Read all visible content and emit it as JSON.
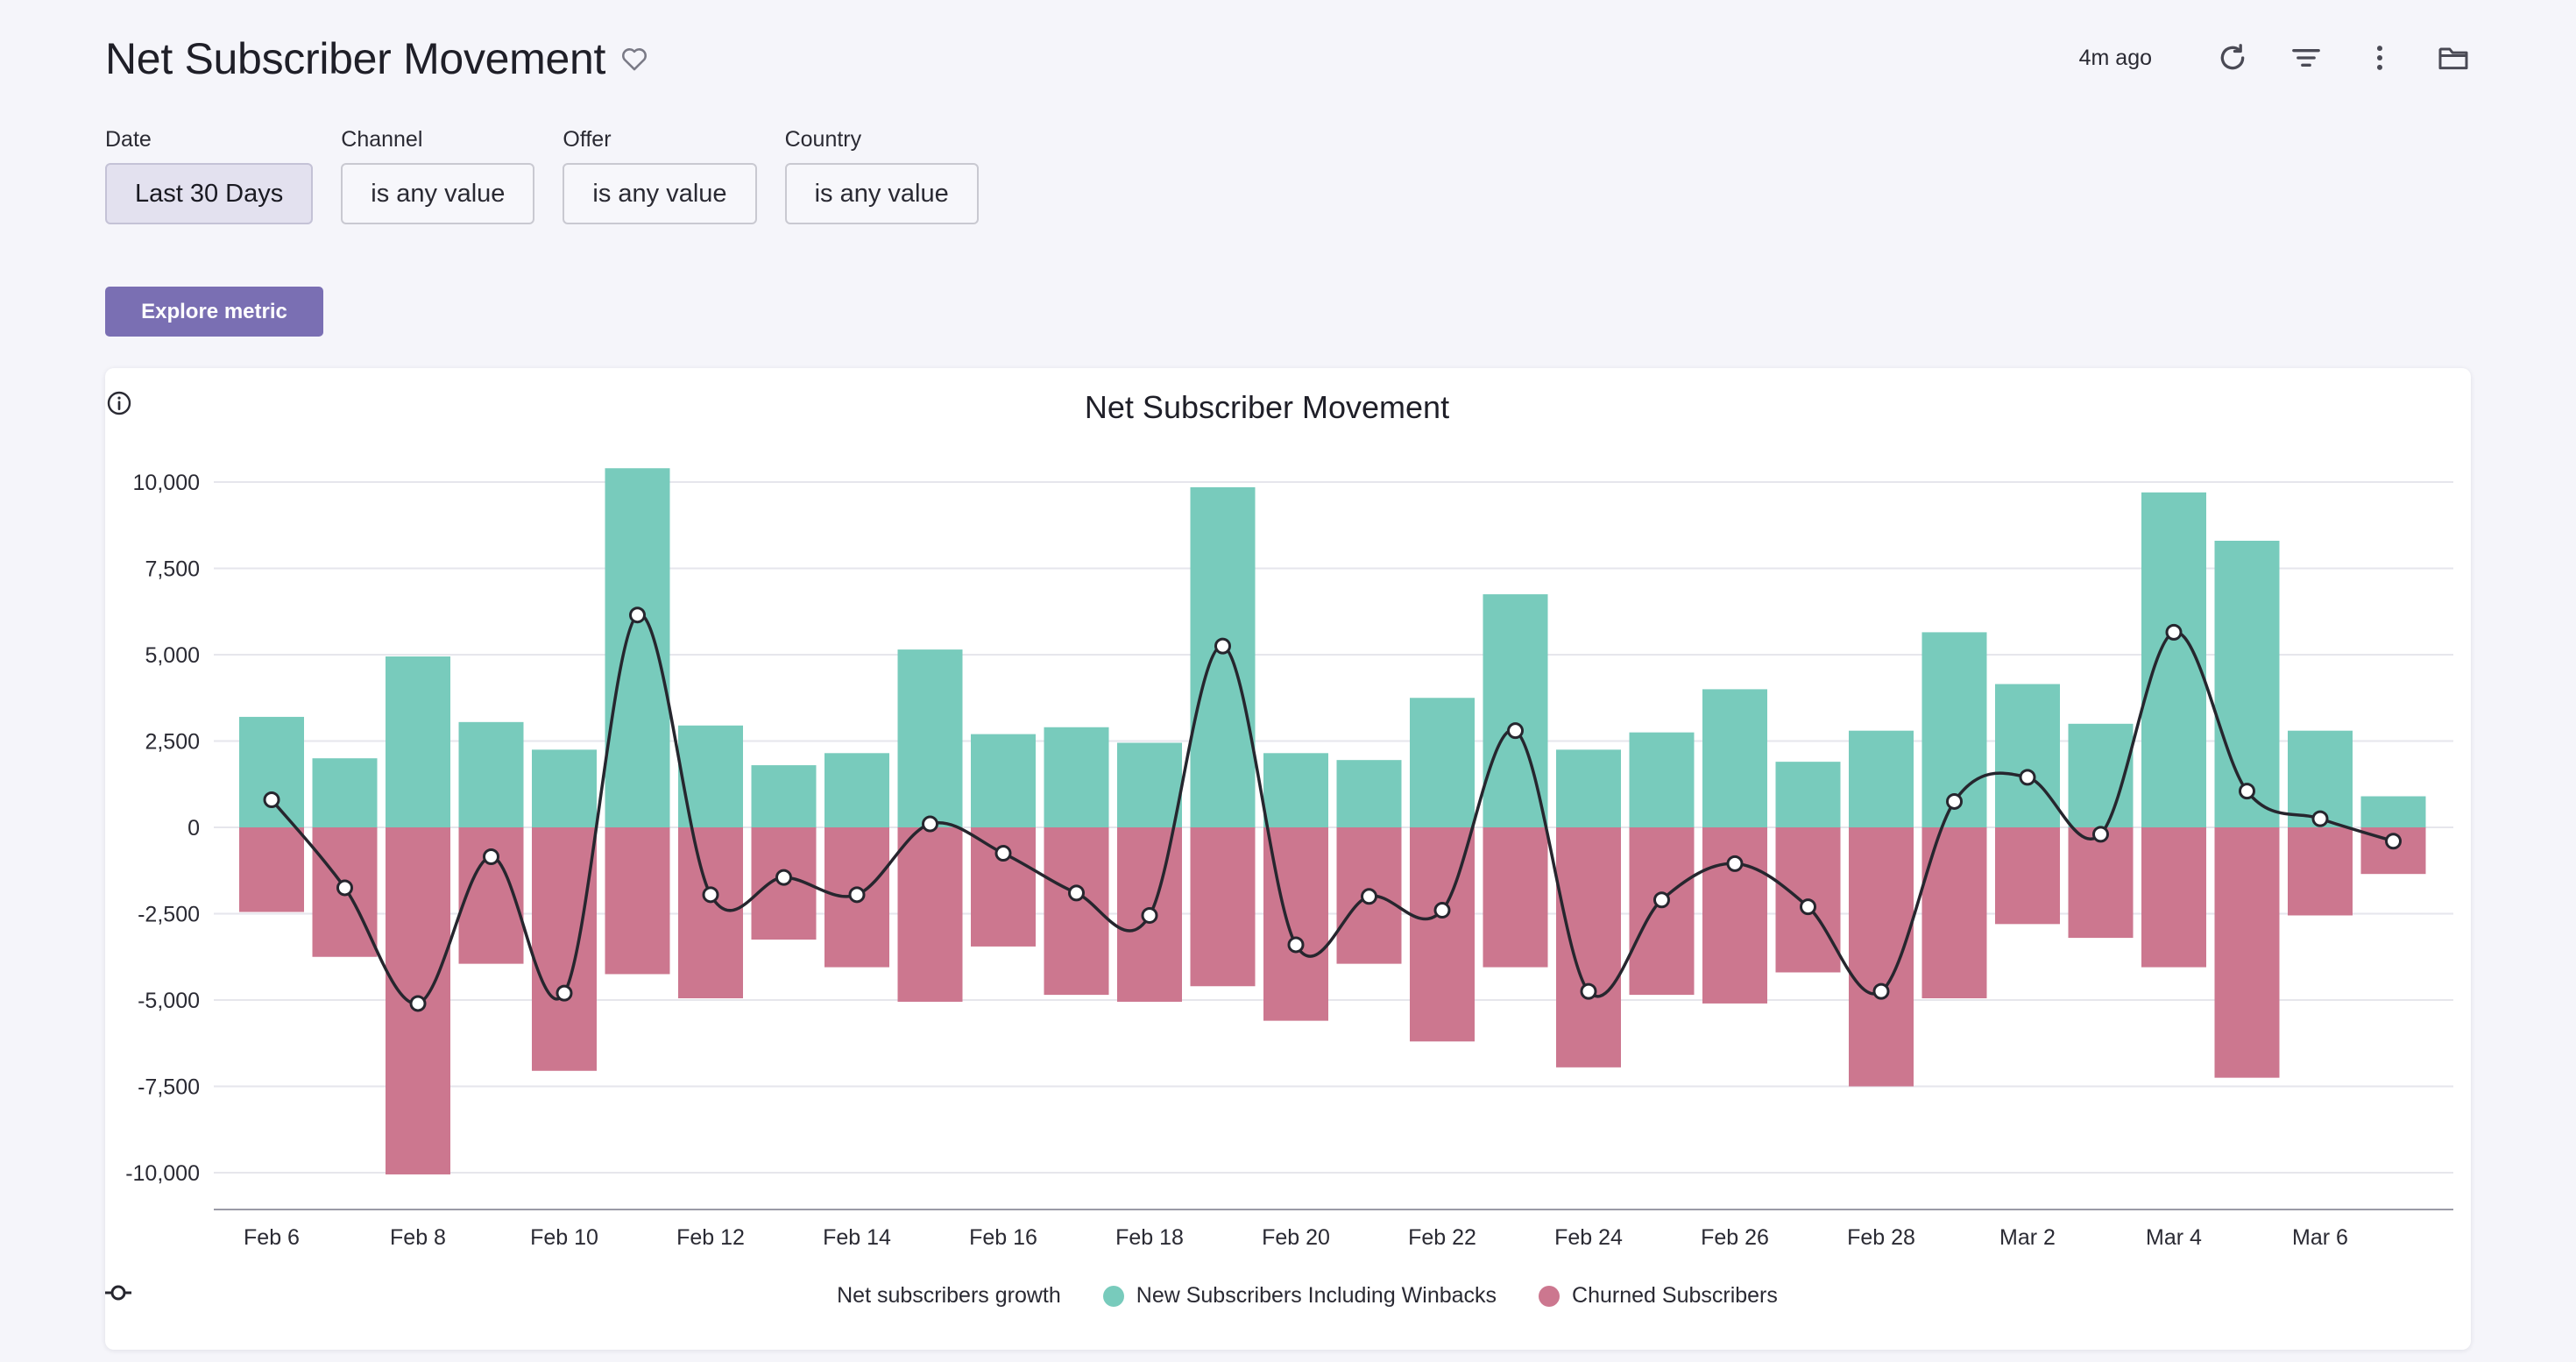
{
  "header": {
    "title": "Net Subscriber Movement",
    "updated": "4m ago"
  },
  "icons": {
    "favorite": "heart-outline-icon",
    "refresh": "refresh-icon",
    "filter": "filter-icon",
    "more": "more-vertical-icon",
    "folder": "folder-icon",
    "info": "info-icon"
  },
  "filters": [
    {
      "label": "Date",
      "value": "Last 30 Days"
    },
    {
      "label": "Channel",
      "value": "is any value"
    },
    {
      "label": "Offer",
      "value": "is any value"
    },
    {
      "label": "Country",
      "value": "is any value"
    }
  ],
  "explore_label": "Explore metric",
  "colors": {
    "new": "#78cbbc",
    "churned": "#cc778f",
    "line": "#26262e",
    "accent": "#7a6fb3"
  },
  "chart_data": {
    "type": "bar",
    "title": "Net Subscriber Movement",
    "xlabel": "",
    "ylabel": "",
    "ylim": [
      -10000,
      10000
    ],
    "yticks": [
      10000,
      7500,
      5000,
      2500,
      0,
      -2500,
      -5000,
      -7500,
      -10000
    ],
    "ytick_labels": [
      "10,000",
      "7,500",
      "5,000",
      "2,500",
      "0",
      "-2,500",
      "-5,000",
      "-7,500",
      "-10,000"
    ],
    "categories": [
      "Feb 6",
      "Feb 7",
      "Feb 8",
      "Feb 9",
      "Feb 10",
      "Feb 11",
      "Feb 12",
      "Feb 13",
      "Feb 14",
      "Feb 15",
      "Feb 16",
      "Feb 17",
      "Feb 18",
      "Feb 19",
      "Feb 20",
      "Feb 21",
      "Feb 22",
      "Feb 23",
      "Feb 24",
      "Feb 25",
      "Feb 26",
      "Feb 27",
      "Feb 28",
      "Mar 1",
      "Mar 2",
      "Mar 3",
      "Mar 4",
      "Mar 5",
      "Mar 6",
      "Mar 7"
    ],
    "xtick_labels": [
      "Feb 6",
      "Feb 8",
      "Feb 10",
      "Feb 12",
      "Feb 14",
      "Feb 16",
      "Feb 18",
      "Feb 20",
      "Feb 22",
      "Feb 24",
      "Feb 26",
      "Feb 28",
      "Mar 2",
      "Mar 4",
      "Mar 6"
    ],
    "series": [
      {
        "name": "New Subscribers Including Winbacks",
        "kind": "bar",
        "values": [
          3200,
          2000,
          4950,
          3050,
          2250,
          10400,
          2950,
          1800,
          2150,
          5150,
          2700,
          2900,
          2450,
          9850,
          2150,
          1950,
          3750,
          6750,
          2250,
          2750,
          4000,
          1900,
          2800,
          5650,
          4150,
          3000,
          9700,
          8300,
          2800,
          900
        ]
      },
      {
        "name": "Churned Subscribers",
        "kind": "bar",
        "values": [
          -2450,
          -3750,
          -10050,
          -3950,
          -7050,
          -4250,
          -4950,
          -3250,
          -4050,
          -5050,
          -3450,
          -4850,
          -5050,
          -4600,
          -5600,
          -3950,
          -6200,
          -4050,
          -6950,
          -4850,
          -5100,
          -4200,
          -7500,
          -4950,
          -2800,
          -3200,
          -4050,
          -7250,
          -2550,
          -1350
        ]
      },
      {
        "name": "Net subscribers growth",
        "kind": "line",
        "values": [
          800,
          -1750,
          -5100,
          -850,
          -4800,
          6150,
          -1950,
          -1450,
          -1950,
          100,
          -750,
          -1900,
          -2550,
          5250,
          -3400,
          -2000,
          -2400,
          2800,
          -4750,
          -2100,
          -1050,
          -2300,
          -4750,
          750,
          1450,
          -200,
          5650,
          1050,
          250,
          -400
        ]
      }
    ],
    "legend": [
      "Net subscribers growth",
      "New Subscribers Including Winbacks",
      "Churned Subscribers"
    ],
    "legend_position": "bottom",
    "grid": true
  }
}
